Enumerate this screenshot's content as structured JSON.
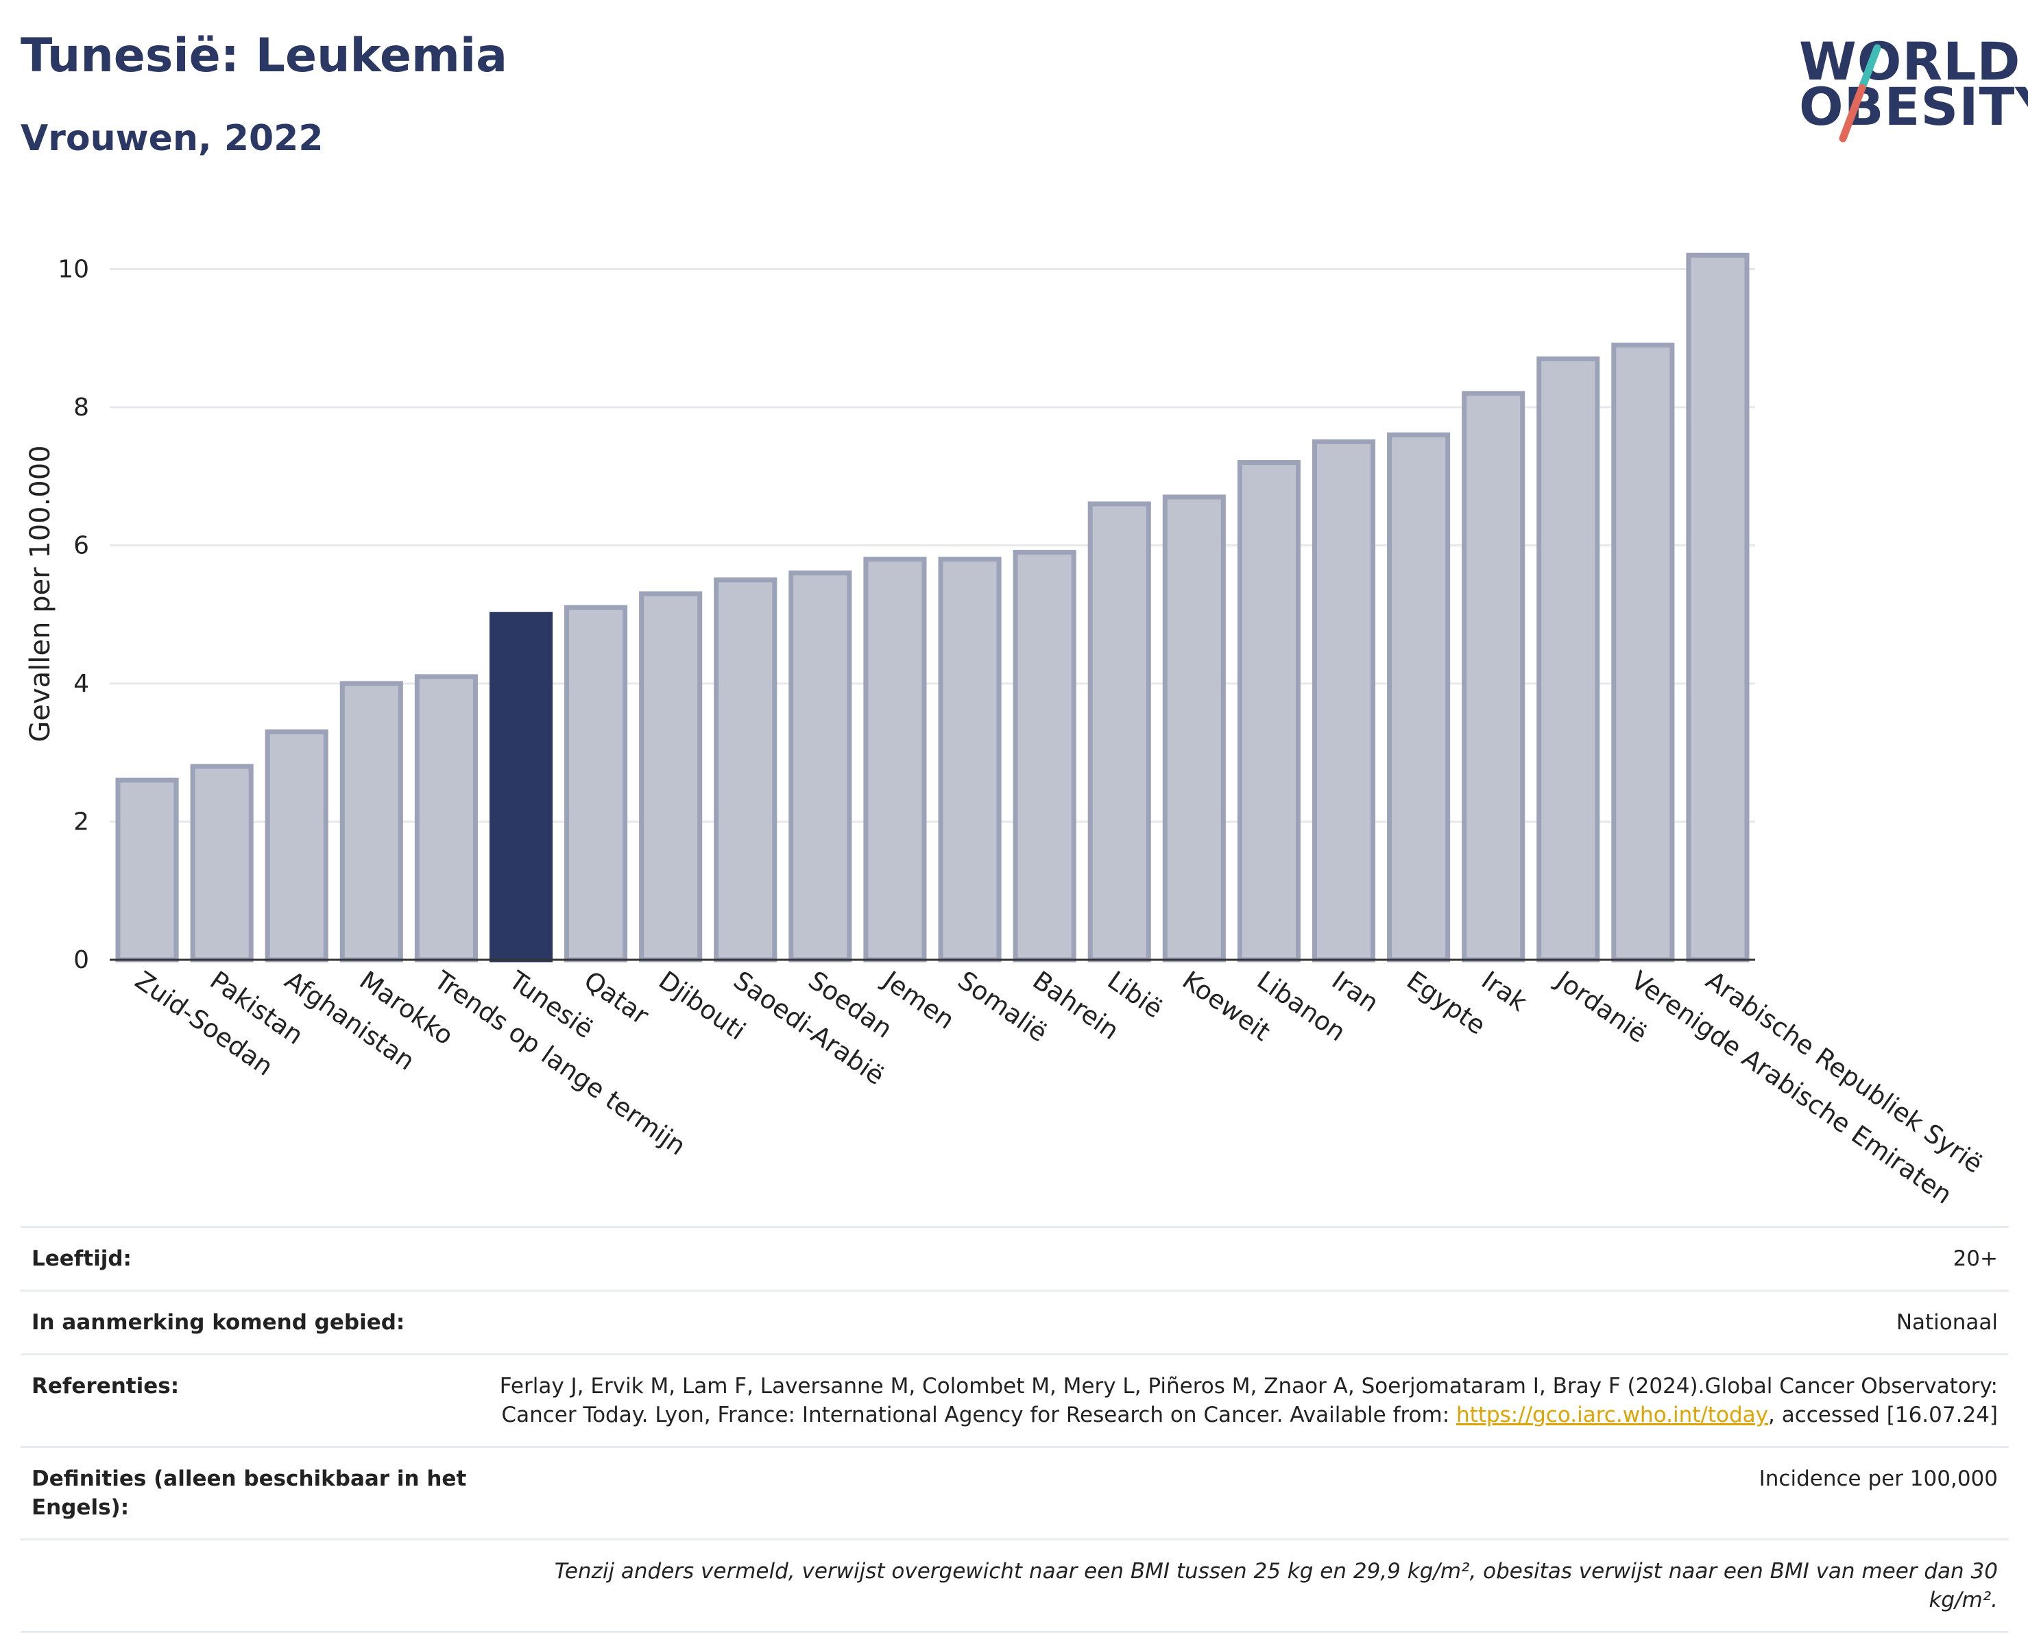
{
  "header": {
    "title": "Tunesië: Leukemia",
    "subtitle": "Vrouwen, 2022"
  },
  "logo": {
    "line1": "WORLD",
    "line2": "OBESITY",
    "slash_colors": [
      "#3fbcb5",
      "#e2685a"
    ]
  },
  "colors": {
    "highlight_bar": "#2b3863",
    "other_bar_fill": "#bfc3d0",
    "other_bar_stroke": "#9ca2b8",
    "gridline": "#e6e8ec",
    "axis": "#333333"
  },
  "chart_data": {
    "type": "bar",
    "title": "Tunesië: Leukemia",
    "subtitle": "Vrouwen, 2022",
    "xlabel": "",
    "ylabel": "Gevallen per 100.000",
    "ylim": [
      0,
      10.6
    ],
    "yticks": [
      0,
      2,
      4,
      6,
      8,
      10
    ],
    "grid": true,
    "highlight": "Tunesië",
    "categories": [
      "Zuid-Soedan",
      "Pakistan",
      "Afghanistan",
      "Marokko",
      "Trends op lange termijn",
      "Tunesië",
      "Qatar",
      "Djibouti",
      "Saoedi-Arabië",
      "Soedan",
      "Jemen",
      "Somalië",
      "Bahrein",
      "Libië",
      "Koeweit",
      "Libanon",
      "Iran",
      "Egypte",
      "Irak",
      "Jordanië",
      "Verenigde Arabische Emiraten",
      "Arabische Republiek Syrië"
    ],
    "values": [
      2.6,
      2.8,
      3.3,
      4.0,
      4.1,
      5.0,
      5.1,
      5.3,
      5.5,
      5.6,
      5.8,
      5.8,
      5.9,
      6.6,
      6.7,
      7.2,
      7.5,
      7.6,
      8.2,
      8.7,
      8.9,
      10.2
    ]
  },
  "meta": {
    "age_label": "Leeftijd:",
    "age_value": "20+",
    "area_label": "In aanmerking komend gebied:",
    "area_value": "Nationaal",
    "ref_label": "Referenties:",
    "ref_text_1": "Ferlay J, Ervik M, Lam F, Laversanne M, Colombet M, Mery L, Piñeros M, Znaor A, Soerjomataram I, Bray F (2024).Global Cancer Observatory: Cancer Today. Lyon, France: International Agency for Research on Cancer. Available from: ",
    "ref_link": "https://gco.iarc.who.int/today",
    "ref_text_2": ", accessed [16.07.24]",
    "def_label": "Definities (alleen beschikbaar in het Engels):",
    "def_value": "Incidence per 100,000",
    "note": "Tenzij anders vermeld, verwijst overgewicht naar een BMI tussen 25 kg en 29,9 kg/m², obesitas verwijst naar een BMI van meer dan 30 kg/m²."
  }
}
